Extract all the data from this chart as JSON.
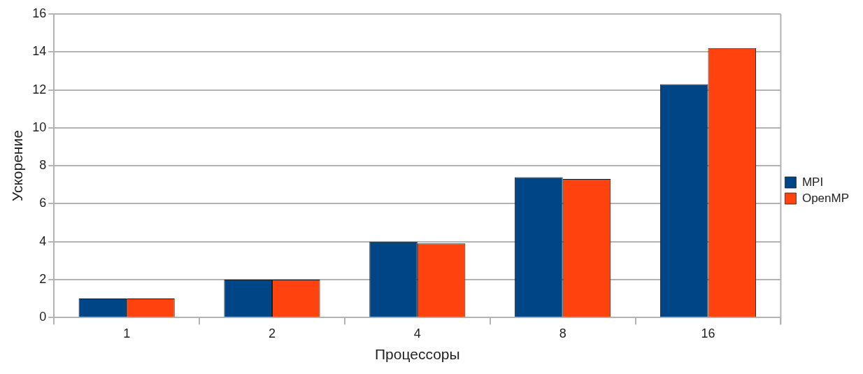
{
  "chart_data": {
    "type": "bar",
    "xlabel": "Процессоры",
    "ylabel": "Ускорение",
    "categories": [
      "1",
      "2",
      "4",
      "8",
      "16"
    ],
    "series": [
      {
        "name": "MPI",
        "color": "#004586",
        "values": [
          1,
          2,
          4,
          7.4,
          12.3
        ]
      },
      {
        "name": "OpenMP",
        "color": "#ff420e",
        "values": [
          1,
          2,
          3.9,
          7.3,
          14.2
        ]
      }
    ],
    "ylim": [
      0,
      16
    ],
    "yticks": [
      0,
      2,
      4,
      6,
      8,
      10,
      12,
      14,
      16
    ],
    "grid": "y",
    "legend": "right"
  }
}
